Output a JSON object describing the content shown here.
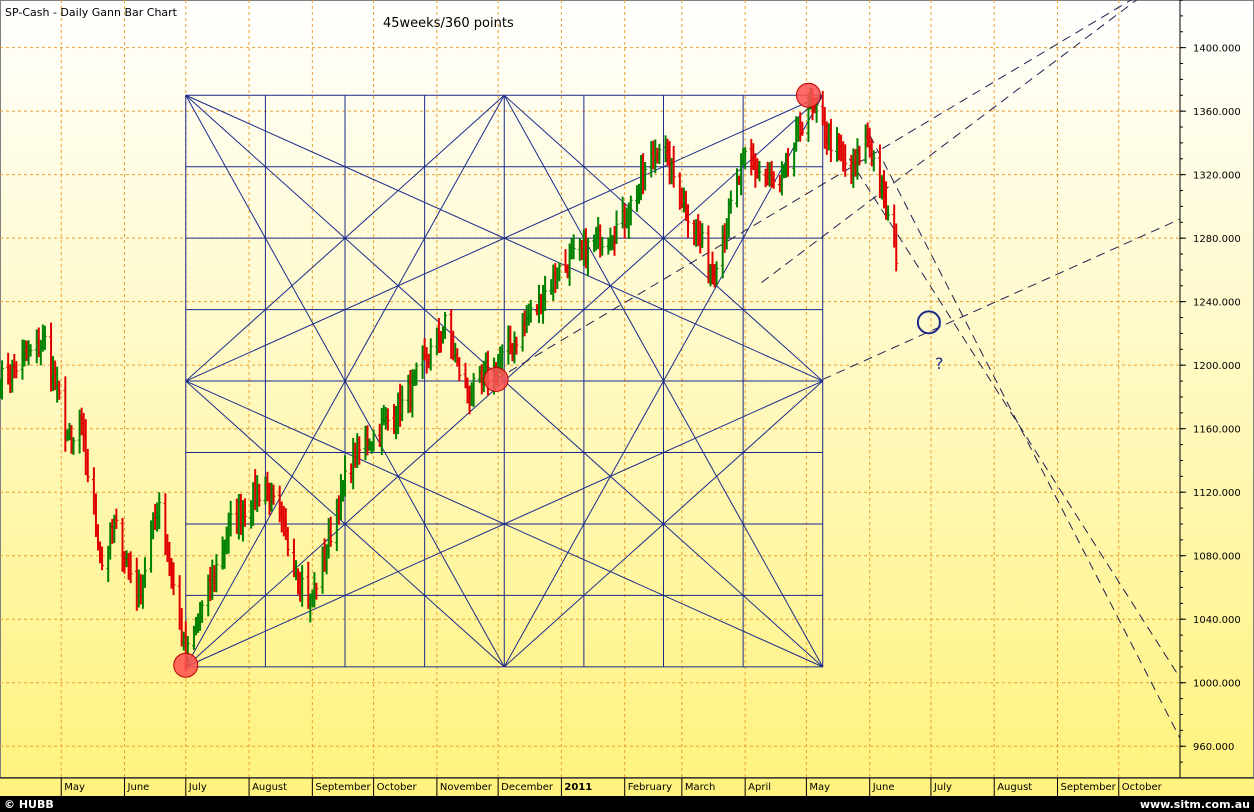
{
  "header": {
    "title": "SP-Cash - Daily Gann Bar Chart",
    "subtitle": "45weeks/360 points"
  },
  "footer": {
    "left": "© HUBB",
    "right": "www.sitm.com.au"
  },
  "annotation": {
    "question_mark": "?"
  },
  "colors": {
    "up_bar": "#008000",
    "down_bar": "#e00000",
    "grid": "#e8a030",
    "gann_lines": "#1a2a8a",
    "marker_fill": "#ff5050",
    "target_circle": "#1a2a8a"
  },
  "chart_data": {
    "type": "bar",
    "title": "SP-Cash - Daily Gann Bar Chart",
    "subtitle": "45weeks/360 points",
    "ylim": [
      940,
      1430
    ],
    "xlim": [
      "2010-04-01",
      "2011-10-31"
    ],
    "y_ticks": [
      960,
      1000,
      1040,
      1080,
      1120,
      1160,
      1200,
      1240,
      1280,
      1320,
      1360,
      1400
    ],
    "y_tick_labels": [
      "960.000",
      "1000.000",
      "1040.000",
      "1080.000",
      "1120.000",
      "1160.000",
      "1200.000",
      "1240.000",
      "1280.000",
      "1320.000",
      "1360.000",
      "1400.000"
    ],
    "x_ticks": [
      {
        "date": "2010-05-01",
        "label": "May"
      },
      {
        "date": "2010-06-01",
        "label": "June"
      },
      {
        "date": "2010-07-01",
        "label": "July"
      },
      {
        "date": "2010-08-01",
        "label": "August"
      },
      {
        "date": "2010-09-01",
        "label": "September"
      },
      {
        "date": "2010-10-01",
        "label": "October"
      },
      {
        "date": "2010-11-01",
        "label": "November"
      },
      {
        "date": "2010-12-01",
        "label": "December"
      },
      {
        "date": "2011-01-01",
        "label": "2011"
      },
      {
        "date": "2011-02-01",
        "label": "February"
      },
      {
        "date": "2011-03-01",
        "label": "March"
      },
      {
        "date": "2011-04-01",
        "label": "April"
      },
      {
        "date": "2011-05-01",
        "label": "May"
      },
      {
        "date": "2011-06-01",
        "label": "June"
      },
      {
        "date": "2011-07-01",
        "label": "July"
      },
      {
        "date": "2011-08-01",
        "label": "August"
      },
      {
        "date": "2011-09-01",
        "label": "September"
      },
      {
        "date": "2011-10-01",
        "label": "October"
      }
    ],
    "grid": true,
    "price_path": [
      [
        "2010-04-01",
        1190
      ],
      [
        "2010-04-23",
        1215
      ],
      [
        "2010-05-06",
        1145
      ],
      [
        "2010-05-10",
        1165
      ],
      [
        "2010-05-21",
        1075
      ],
      [
        "2010-05-27",
        1100
      ],
      [
        "2010-06-08",
        1055
      ],
      [
        "2010-06-18",
        1115
      ],
      [
        "2010-07-01",
        1015
      ],
      [
        "2010-07-23",
        1100
      ],
      [
        "2010-08-09",
        1125
      ],
      [
        "2010-08-31",
        1050
      ],
      [
        "2010-09-20",
        1140
      ],
      [
        "2010-10-15",
        1175
      ],
      [
        "2010-11-05",
        1225
      ],
      [
        "2010-11-16",
        1180
      ],
      [
        "2010-12-01",
        1200
      ],
      [
        "2010-12-31",
        1260
      ],
      [
        "2011-01-31",
        1290
      ],
      [
        "2011-02-18",
        1340
      ],
      [
        "2011-03-16",
        1260
      ],
      [
        "2011-04-01",
        1330
      ],
      [
        "2011-04-18",
        1310
      ],
      [
        "2011-05-02",
        1365
      ],
      [
        "2011-05-23",
        1320
      ],
      [
        "2011-05-31",
        1345
      ],
      [
        "2011-06-15",
        1265
      ]
    ],
    "gann_box": {
      "start_date": "2010-07-01",
      "end_date": "2011-05-09",
      "low": 1010,
      "high": 1370,
      "divisions_time": 8,
      "divisions_price": 8
    },
    "markers": [
      {
        "date": "2010-07-01",
        "price": 1011
      },
      {
        "date": "2010-11-30",
        "price": 1191
      },
      {
        "date": "2011-05-02",
        "price": 1370
      }
    ],
    "target": {
      "date": "2011-06-30",
      "price": 1227
    },
    "projections": [
      {
        "from": [
          "2010-11-30",
          1191
        ],
        "to": [
          "2011-10-20",
          1440
        ],
        "style": "dashed"
      },
      {
        "from": [
          "2011-04-09",
          1252
        ],
        "to": [
          "2011-10-20",
          1440
        ],
        "style": "dashed"
      },
      {
        "from": [
          "2011-05-09",
          1191
        ],
        "to": [
          "2011-10-31",
          1292
        ],
        "style": "dashed"
      },
      {
        "from": [
          "2011-05-22",
          1330
        ],
        "to": [
          "2011-10-31",
          1003
        ],
        "style": "dashed"
      },
      {
        "from": [
          "2011-06-01",
          1345
        ],
        "to": [
          "2011-10-31",
          965
        ],
        "style": "dashed"
      }
    ]
  }
}
